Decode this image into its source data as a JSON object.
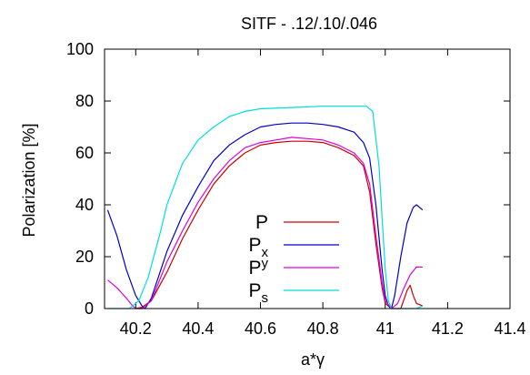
{
  "chart_data": {
    "type": "line",
    "title": "SITF - .12/.10/.046",
    "xlabel": "a*γ",
    "ylabel": "Polarization [%]",
    "xlim": [
      40.1,
      41.4
    ],
    "ylim": [
      0,
      100
    ],
    "xticks": [
      "40.2",
      "40.4",
      "40.6",
      "40.8",
      "41",
      "41.2",
      "41.4"
    ],
    "yticks": [
      "0",
      "20",
      "40",
      "60",
      "80",
      "100"
    ],
    "grid": false,
    "legend_position": "center-bottom",
    "series": [
      {
        "name": "P",
        "subscript": "",
        "superscript": "",
        "color": "#cc0000",
        "points": [
          [
            40.2,
            0
          ],
          [
            40.22,
            0.5
          ],
          [
            40.25,
            3
          ],
          [
            40.3,
            14
          ],
          [
            40.35,
            27
          ],
          [
            40.4,
            38
          ],
          [
            40.45,
            48
          ],
          [
            40.5,
            55
          ],
          [
            40.55,
            60
          ],
          [
            40.6,
            63
          ],
          [
            40.65,
            64
          ],
          [
            40.7,
            64.5
          ],
          [
            40.75,
            64.5
          ],
          [
            40.8,
            64
          ],
          [
            40.85,
            62
          ],
          [
            40.9,
            59
          ],
          [
            40.93,
            55
          ],
          [
            40.95,
            45
          ],
          [
            40.97,
            25
          ],
          [
            40.99,
            8
          ],
          [
            41.0,
            2
          ],
          [
            41.02,
            0
          ],
          [
            41.05,
            0
          ],
          [
            41.07,
            7
          ],
          [
            41.08,
            9
          ],
          [
            41.09,
            5
          ],
          [
            41.1,
            2
          ],
          [
            41.12,
            1
          ]
        ]
      },
      {
        "name": "P",
        "subscript": "x",
        "superscript": "",
        "color": "#0000cc",
        "points": [
          [
            40.11,
            38
          ],
          [
            40.14,
            28
          ],
          [
            40.17,
            15
          ],
          [
            40.2,
            5
          ],
          [
            40.22,
            1
          ],
          [
            40.23,
            0
          ],
          [
            40.25,
            4
          ],
          [
            40.3,
            22
          ],
          [
            40.35,
            36
          ],
          [
            40.4,
            47
          ],
          [
            40.45,
            57
          ],
          [
            40.5,
            63
          ],
          [
            40.55,
            67
          ],
          [
            40.6,
            70
          ],
          [
            40.65,
            71
          ],
          [
            40.7,
            71.5
          ],
          [
            40.75,
            71.5
          ],
          [
            40.8,
            71
          ],
          [
            40.85,
            70
          ],
          [
            40.9,
            68
          ],
          [
            40.93,
            64
          ],
          [
            40.95,
            58
          ],
          [
            40.97,
            40
          ],
          [
            40.99,
            15
          ],
          [
            41.0,
            5
          ],
          [
            41.01,
            1
          ],
          [
            41.02,
            0
          ],
          [
            41.03,
            5
          ],
          [
            41.05,
            20
          ],
          [
            41.07,
            33
          ],
          [
            41.09,
            39
          ],
          [
            41.1,
            40
          ],
          [
            41.12,
            38
          ]
        ]
      },
      {
        "name": "P",
        "subscript": "",
        "superscript": "y",
        "color": "#dd00dd",
        "points": [
          [
            40.11,
            11
          ],
          [
            40.14,
            8
          ],
          [
            40.17,
            4
          ],
          [
            40.19,
            1
          ],
          [
            40.2,
            0
          ],
          [
            40.22,
            0
          ],
          [
            40.25,
            3
          ],
          [
            40.3,
            18
          ],
          [
            40.35,
            30
          ],
          [
            40.4,
            41
          ],
          [
            40.45,
            50
          ],
          [
            40.5,
            57
          ],
          [
            40.55,
            62
          ],
          [
            40.6,
            64
          ],
          [
            40.65,
            65
          ],
          [
            40.7,
            66
          ],
          [
            40.75,
            65.5
          ],
          [
            40.8,
            65
          ],
          [
            40.85,
            63
          ],
          [
            40.9,
            60
          ],
          [
            40.93,
            56
          ],
          [
            40.95,
            48
          ],
          [
            40.97,
            28
          ],
          [
            40.99,
            10
          ],
          [
            41.0,
            3
          ],
          [
            41.02,
            0
          ],
          [
            41.04,
            2
          ],
          [
            41.06,
            8
          ],
          [
            41.08,
            13
          ],
          [
            41.1,
            16
          ],
          [
            41.12,
            16
          ]
        ]
      },
      {
        "name": "P",
        "subscript": "s",
        "superscript": "",
        "color": "#00dddd",
        "points": [
          [
            40.11,
            0
          ],
          [
            40.18,
            0
          ],
          [
            40.21,
            3
          ],
          [
            40.24,
            12
          ],
          [
            40.28,
            30
          ],
          [
            40.3,
            40
          ],
          [
            40.35,
            56
          ],
          [
            40.4,
            65
          ],
          [
            40.45,
            70
          ],
          [
            40.5,
            74
          ],
          [
            40.55,
            76
          ],
          [
            40.6,
            77
          ],
          [
            40.7,
            77.5
          ],
          [
            40.8,
            78
          ],
          [
            40.9,
            78
          ],
          [
            40.94,
            78
          ],
          [
            40.96,
            76
          ],
          [
            40.98,
            55
          ],
          [
            40.99,
            35
          ],
          [
            41.0,
            15
          ],
          [
            41.01,
            3
          ],
          [
            41.02,
            0
          ],
          [
            41.05,
            0
          ],
          [
            41.08,
            0
          ],
          [
            41.1,
            0
          ],
          [
            41.12,
            1
          ]
        ]
      }
    ]
  }
}
